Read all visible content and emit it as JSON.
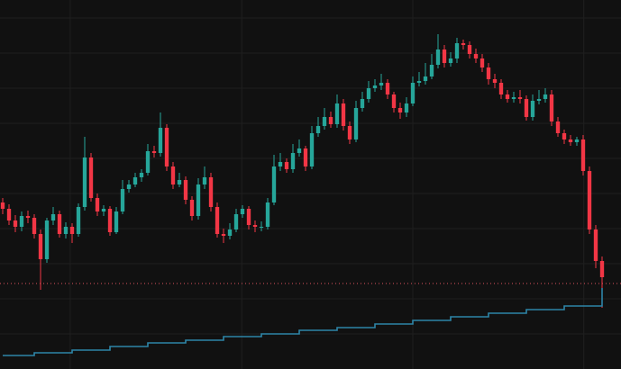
{
  "chart_data": {
    "type": "candlestick",
    "background": "#111111",
    "grid": true,
    "grid_color": "#1f1f1f",
    "up_color": "#26a69a",
    "down_color": "#f23645",
    "xlim": [
      -0.43,
      98
    ],
    "ylim": [
      0,
      410
    ],
    "xticks": [
      10.7,
      37.9,
      65,
      92.1
    ],
    "yticks": [
      39,
      78,
      117,
      156,
      195,
      234,
      273,
      312,
      351,
      390
    ],
    "open": [
      185,
      178,
      165,
      158,
      170,
      168,
      150,
      122,
      165,
      172,
      150,
      158,
      150,
      180,
      235,
      190,
      175,
      178,
      152,
      175,
      200,
      205,
      213,
      218,
      242,
      240,
      268,
      225,
      205,
      210,
      188,
      170,
      205,
      213,
      180,
      150,
      148,
      155,
      172,
      178,
      160,
      158,
      158,
      185,
      225,
      230,
      222,
      240,
      245,
      225,
      262,
      270,
      280,
      272,
      295,
      270,
      255,
      290,
      300,
      312,
      315,
      318,
      305,
      290,
      285,
      295,
      318,
      320,
      325,
      338,
      355,
      340,
      345,
      362,
      360,
      350,
      345,
      335,
      322,
      318,
      305,
      300,
      302,
      300,
      280,
      298,
      300,
      305,
      275,
      262,
      255,
      252,
      255,
      220,
      155,
      120
    ],
    "high": [
      190,
      183,
      171,
      175,
      176,
      172,
      155,
      168,
      180,
      176,
      163,
      162,
      184,
      258,
      240,
      195,
      182,
      181,
      180,
      210,
      210,
      218,
      222,
      250,
      248,
      285,
      272,
      230,
      218,
      214,
      192,
      212,
      225,
      218,
      185,
      156,
      162,
      178,
      182,
      181,
      165,
      164,
      190,
      238,
      240,
      234,
      250,
      255,
      248,
      270,
      280,
      290,
      286,
      305,
      300,
      275,
      298,
      308,
      320,
      322,
      328,
      322,
      308,
      296,
      302,
      325,
      330,
      340,
      350,
      372,
      360,
      352,
      368,
      366,
      364,
      356,
      350,
      340,
      328,
      322,
      310,
      308,
      310,
      304,
      305,
      310,
      312,
      310,
      280,
      266,
      260,
      258,
      260,
      225,
      160,
      125
    ],
    "low": [
      172,
      160,
      152,
      153,
      162,
      145,
      88,
      118,
      160,
      146,
      145,
      140,
      147,
      176,
      186,
      170,
      170,
      148,
      150,
      172,
      196,
      202,
      208,
      215,
      235,
      236,
      220,
      200,
      202,
      183,
      165,
      166,
      200,
      175,
      146,
      140,
      144,
      152,
      168,
      155,
      152,
      153,
      155,
      182,
      220,
      218,
      218,
      236,
      220,
      222,
      258,
      266,
      268,
      268,
      265,
      250,
      252,
      286,
      296,
      308,
      310,
      300,
      285,
      278,
      280,
      292,
      314,
      316,
      322,
      334,
      335,
      336,
      340,
      355,
      345,
      340,
      330,
      316,
      312,
      300,
      296,
      296,
      295,
      276,
      276,
      294,
      296,
      270,
      258,
      250,
      248,
      248,
      215,
      150,
      112,
      68
    ],
    "close": [
      178,
      165,
      158,
      170,
      168,
      150,
      122,
      165,
      172,
      150,
      158,
      150,
      180,
      235,
      190,
      175,
      178,
      152,
      175,
      200,
      205,
      213,
      218,
      242,
      240,
      268,
      225,
      205,
      210,
      188,
      170,
      205,
      213,
      180,
      150,
      148,
      155,
      172,
      178,
      160,
      158,
      158,
      185,
      225,
      230,
      222,
      240,
      245,
      225,
      262,
      270,
      280,
      272,
      295,
      270,
      255,
      290,
      300,
      312,
      315,
      318,
      305,
      290,
      285,
      295,
      318,
      320,
      325,
      338,
      355,
      340,
      345,
      362,
      360,
      350,
      345,
      335,
      322,
      318,
      305,
      300,
      302,
      300,
      280,
      298,
      300,
      305,
      275,
      262,
      255,
      252,
      255,
      220,
      155,
      120,
      102
    ],
    "hline": {
      "value": 95,
      "color": "#e0525d"
    },
    "series": [
      {
        "type": "line",
        "step": true,
        "color": "#2e86a8",
        "values": [
          15,
          15,
          15,
          15,
          15,
          18,
          18,
          18,
          18,
          18,
          18,
          21,
          21,
          21,
          21,
          21,
          21,
          25,
          25,
          25,
          25,
          25,
          25,
          29,
          29,
          29,
          29,
          29,
          29,
          32,
          32,
          32,
          32,
          32,
          32,
          36,
          36,
          36,
          36,
          36,
          36,
          39,
          39,
          39,
          39,
          39,
          39,
          43,
          43,
          43,
          43,
          43,
          43,
          46,
          46,
          46,
          46,
          46,
          46,
          50,
          50,
          50,
          50,
          50,
          50,
          54,
          54,
          54,
          54,
          54,
          54,
          58,
          58,
          58,
          58,
          58,
          58,
          62,
          62,
          62,
          62,
          62,
          62,
          66,
          66,
          66,
          66,
          66,
          66,
          70,
          70,
          70,
          70,
          70,
          70,
          90
        ]
      }
    ]
  }
}
